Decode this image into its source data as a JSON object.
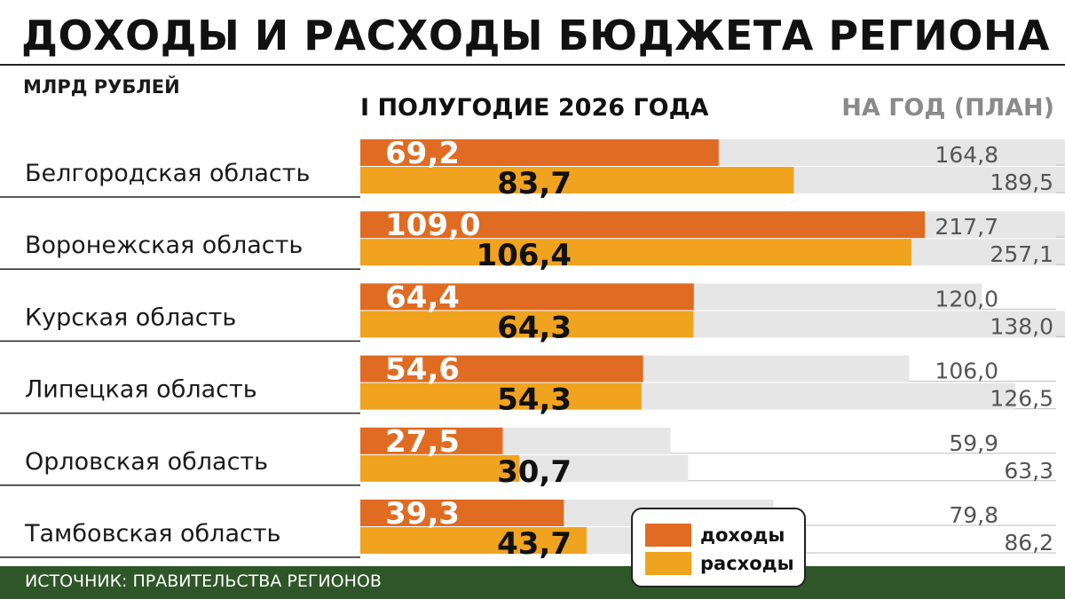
{
  "title": "ДОХОДЫ И РАСХОДЫ БЮДЖЕТА РЕГИОНА",
  "unit_label": "МЛРД РУБЛЕЙ",
  "column_headers": {
    "half_year": "I ПОЛУГОДИЕ 2026 ГОДА",
    "year_plan": "НА ГОД (ПЛАН)"
  },
  "legend": {
    "income": "доходы",
    "expenses": "расходы"
  },
  "source": "ИСТОЧНИК: ПРАВИТЕЛЬСТВА РЕГИОНОВ",
  "colors": {
    "income": "#e06b23",
    "expenses": "#f0a31f",
    "plan": "#e6e6e6",
    "footer": "#2f5628"
  },
  "chart_data": {
    "type": "bar",
    "orientation": "horizontal",
    "categories": [
      "Белгородская область",
      "Воронежская область",
      "Курская область",
      "Липецкая область",
      "Орловская область",
      "Тамбовская область"
    ],
    "series": [
      {
        "name": "доходы",
        "values": [
          69.2,
          109.0,
          64.4,
          54.6,
          27.5,
          39.3
        ]
      },
      {
        "name": "расходы",
        "values": [
          83.7,
          106.4,
          64.3,
          54.3,
          30.7,
          43.7
        ]
      }
    ],
    "plan": {
      "income": [
        164.8,
        217.7,
        120.0,
        106.0,
        59.9,
        79.8
      ],
      "expenses": [
        189.5,
        257.1,
        138.0,
        126.5,
        63.3,
        86.2
      ]
    },
    "labels": {
      "income": [
        "69,2",
        "109,0",
        "64,4",
        "54,6",
        "27,5",
        "39,3"
      ],
      "expenses": [
        "83,7",
        "106,4",
        "64,3",
        "54,3",
        "30,7",
        "43,7"
      ],
      "plan_income": [
        "164,8",
        "217,7",
        "120,0",
        "106,0",
        "59,9",
        "79,8"
      ],
      "plan_expenses": [
        "189,5",
        "257,1",
        "138,0",
        "126,5",
        "63,3",
        "86,2"
      ]
    }
  }
}
